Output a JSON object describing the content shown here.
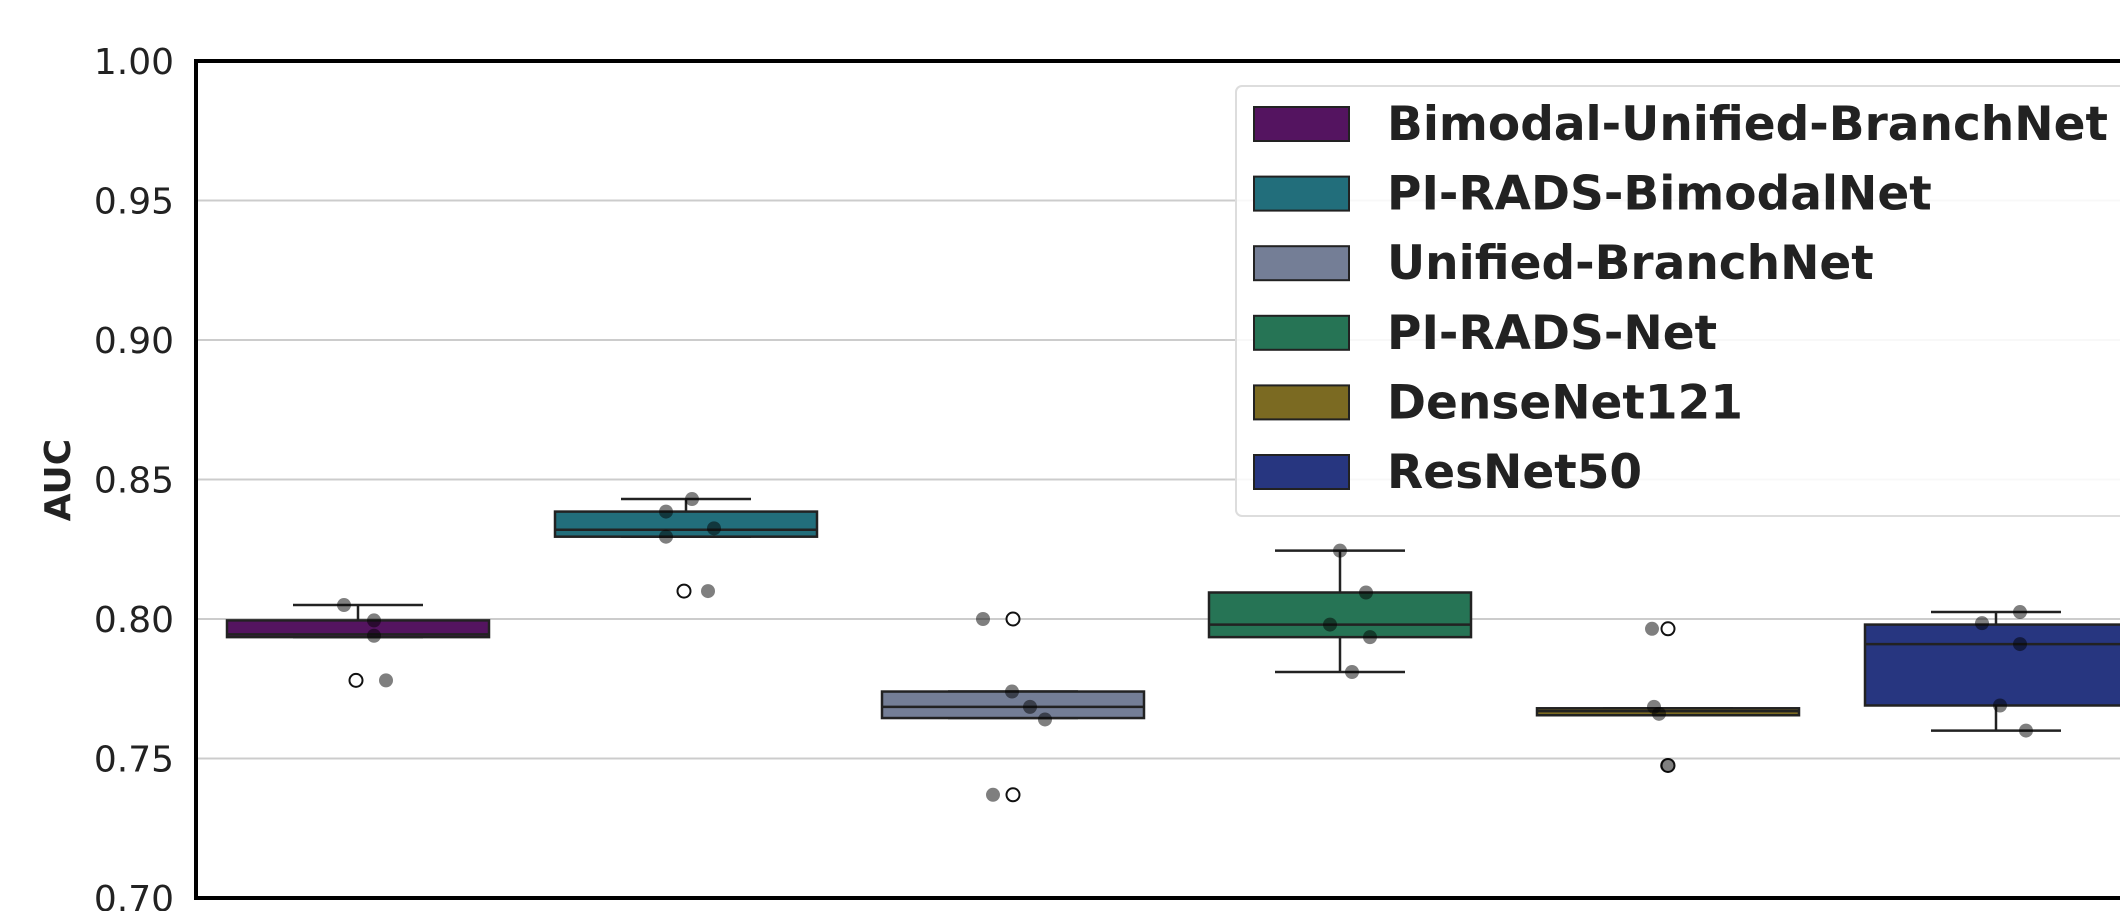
{
  "chart_data": {
    "type": "box",
    "title": "",
    "xlabel": "",
    "ylabel": "AUC",
    "ylim": [
      0.7,
      1.0
    ],
    "yticks": [
      "0.70",
      "0.75",
      "0.80",
      "0.85",
      "0.90",
      "0.95",
      "1.00"
    ],
    "grid": true,
    "legend_position": "top-right",
    "series": [
      {
        "name": "Bimodal-Unified-BranchNet",
        "color": "#541460",
        "box": {
          "q1": 0.7935,
          "median": 0.7945,
          "q3": 0.7995,
          "whisker_low": 0.7935,
          "whisker_high": 0.805
        },
        "outliers": [
          0.778
        ],
        "points": [
          0.805,
          0.7995,
          0.794,
          0.778
        ]
      },
      {
        "name": "PI-RADS-BimodalNet",
        "color": "#226E7B",
        "box": {
          "q1": 0.8295,
          "median": 0.832,
          "q3": 0.8385,
          "whisker_low": 0.8295,
          "whisker_high": 0.843
        },
        "outliers": [
          0.81
        ],
        "points": [
          0.8385,
          0.843,
          0.8295,
          0.8325,
          0.81
        ]
      },
      {
        "name": "Unified-BranchNet",
        "color": "#747E96",
        "box": {
          "q1": 0.7645,
          "median": 0.7685,
          "q3": 0.774,
          "whisker_low": 0.7645,
          "whisker_high": 0.774
        },
        "outliers": [
          0.8,
          0.737
        ],
        "points": [
          0.8,
          0.774,
          0.7685,
          0.764,
          0.737
        ]
      },
      {
        "name": "PI-RADS-Net",
        "color": "#267455",
        "box": {
          "q1": 0.7935,
          "median": 0.798,
          "q3": 0.8095,
          "whisker_low": 0.781,
          "whisker_high": 0.8245
        },
        "outliers": [],
        "points": [
          0.8245,
          0.8095,
          0.798,
          0.7935,
          0.781
        ]
      },
      {
        "name": "DenseNet121",
        "color": "#7B6A22",
        "box": {
          "q1": 0.7655,
          "median": 0.767,
          "q3": 0.768,
          "whisker_low": 0.7655,
          "whisker_high": 0.768
        },
        "outliers": [
          0.7965,
          0.7475
        ],
        "points": [
          0.7965,
          0.7685,
          0.766,
          0.7475
        ]
      },
      {
        "name": "ResNet50",
        "color": "#273680",
        "box": {
          "q1": 0.769,
          "median": 0.791,
          "q3": 0.798,
          "whisker_low": 0.76,
          "whisker_high": 0.8025
        },
        "outliers": [],
        "points": [
          0.7985,
          0.8025,
          0.791,
          0.769,
          0.76
        ]
      }
    ]
  }
}
